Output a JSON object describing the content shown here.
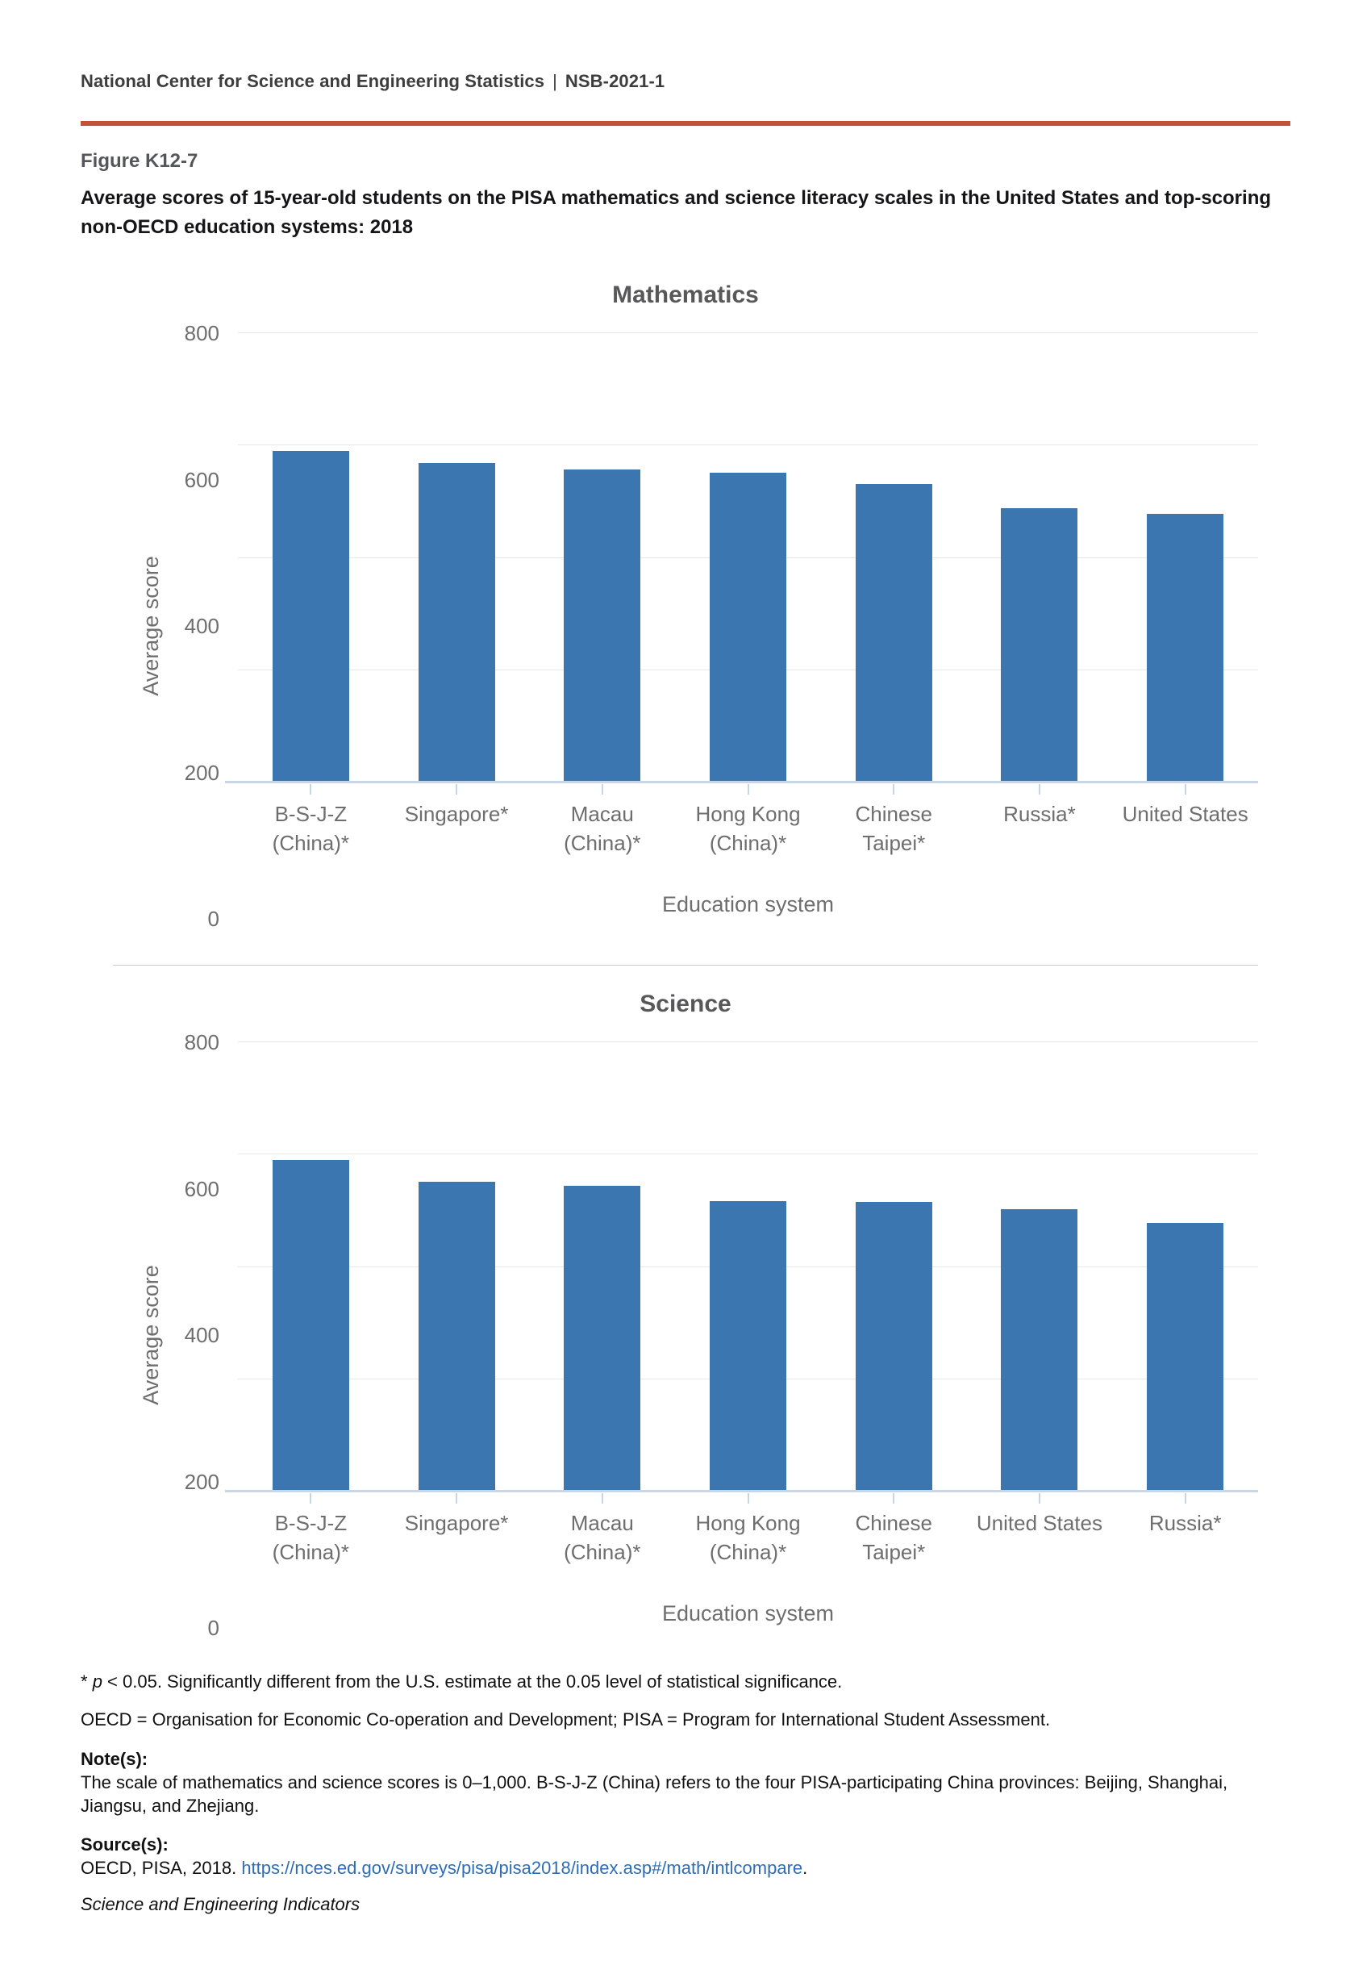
{
  "header": {
    "org": "National Center for Science and Engineering Statistics",
    "separator": "|",
    "report_id": "NSB-2021-1"
  },
  "figure": {
    "label": "Figure K12-7",
    "title": "Average scores of 15-year-old students on the PISA mathematics and science literacy scales in the United States and top-scoring non-OECD education systems: 2018"
  },
  "chart_data": [
    {
      "type": "bar",
      "title": "Mathematics",
      "categories": [
        "B-S-J-Z\n(China)*",
        "Singapore*",
        "Macau\n(China)*",
        "Hong Kong\n(China)*",
        "Chinese\nTaipei*",
        "Russia*",
        "United States"
      ],
      "values": [
        591,
        569,
        558,
        551,
        531,
        488,
        478
      ],
      "xlabel": "Education system",
      "ylabel": "Average score",
      "ylim": [
        0,
        800
      ],
      "yticks": [
        0,
        200,
        400,
        600,
        800
      ],
      "bar_color": "#3b76b0",
      "grid": true,
      "legend": "none"
    },
    {
      "type": "bar",
      "title": "Science",
      "categories": [
        "B-S-J-Z\n(China)*",
        "Singapore*",
        "Macau\n(China)*",
        "Hong Kong\n(China)*",
        "Chinese\nTaipei*",
        "United States",
        "Russia*"
      ],
      "values": [
        590,
        551,
        544,
        517,
        516,
        502,
        478
      ],
      "xlabel": "Education system",
      "ylabel": "Average score",
      "ylim": [
        0,
        800
      ],
      "yticks": [
        0,
        200,
        400,
        600,
        800
      ],
      "bar_color": "#3b76b0",
      "grid": true,
      "legend": "none"
    }
  ],
  "footnotes": {
    "sig_prefix": "* ",
    "sig_p": "p",
    "sig_rest": " < 0.05. Significantly different from the U.S. estimate at the 0.05 level of statistical significance.",
    "abbrev": "OECD = Organisation for Economic Co-operation and Development; PISA = Program for International Student Assessment.",
    "notes_heading": "Note(s):",
    "notes_text": "The scale of mathematics and science scores is 0–1,000. B-S-J-Z (China) refers to the four PISA-participating China provinces: Beijing, Shanghai, Jiangsu, and Zhejiang.",
    "source_heading": "Source(s):",
    "source_pre": "OECD, PISA, 2018. ",
    "source_link": "https://nces.ed.gov/surveys/pisa/pisa2018/index.asp#/math/intlcompare",
    "source_post": ".",
    "journal": "Science and Engineering Indicators"
  },
  "colors": {
    "accent_rule": "#c0523a",
    "bar": "#3b76b0",
    "link": "#2e6db4",
    "axis": "#c8d4e8",
    "gridline": "#e7e7e7"
  }
}
